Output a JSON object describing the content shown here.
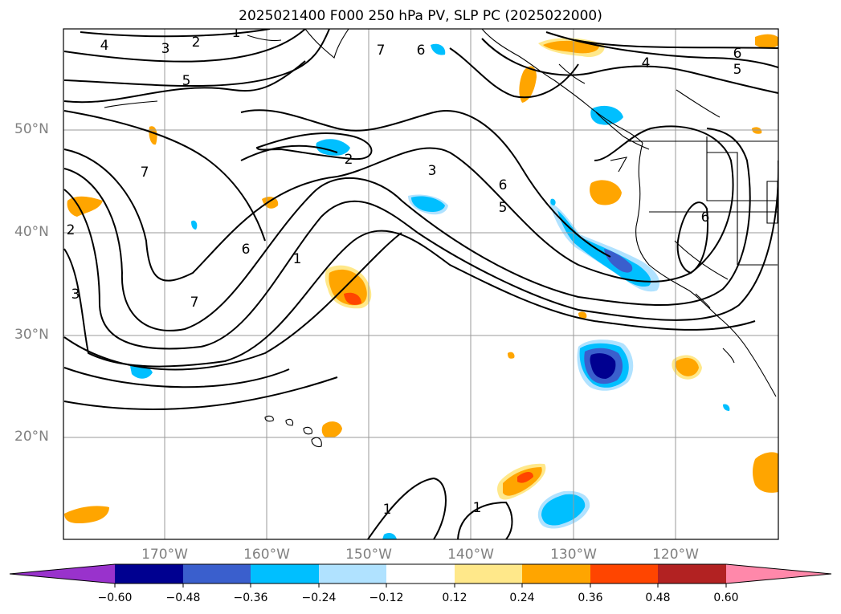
{
  "title": "2025021400 F000 250 hPa PV, SLP PC (2025022000)",
  "colors": {
    "frame": "#000000",
    "grid": "#9a9a9a",
    "axis_label": "#808080",
    "contour": "#000000"
  },
  "map": {
    "lat_labels": [
      "50°N",
      "40°N",
      "30°N",
      "20°N"
    ],
    "lon_labels": [
      "170°W",
      "160°W",
      "150°W",
      "140°W",
      "130°W",
      "120°W"
    ]
  },
  "contour_labels": [
    "4",
    "3",
    "2",
    "1",
    "7",
    "6",
    "6",
    "5",
    "4",
    "5",
    "2",
    "7",
    "3",
    "6",
    "5",
    "6",
    "6",
    "7",
    "1",
    "2",
    "3",
    "1",
    "1"
  ],
  "colorbar": {
    "ticks": [
      "−0.60",
      "−0.48",
      "−0.36",
      "−0.24",
      "−0.12",
      "0.12",
      "0.24",
      "0.36",
      "0.48",
      "0.60"
    ],
    "colors": [
      "#9932cc",
      "#000090",
      "#3a5fcd",
      "#00bfff",
      "#b0e2ff",
      "#ffffff",
      "#ffe88a",
      "#ffa500",
      "#ff4500",
      "#b22222",
      "#ff88aa"
    ]
  }
}
